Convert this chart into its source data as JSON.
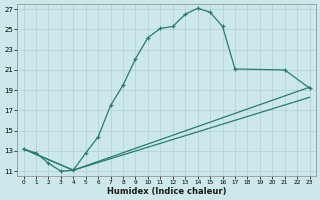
{
  "xlabel": "Humidex (Indice chaleur)",
  "bg_color": "#cce8ea",
  "grid_color": "#b0d0d4",
  "line_color": "#2a7a72",
  "xlim": [
    -0.5,
    23.5
  ],
  "ylim": [
    10.5,
    27.5
  ],
  "yticks": [
    11,
    13,
    15,
    17,
    19,
    21,
    23,
    25,
    27
  ],
  "xticks": [
    0,
    1,
    2,
    3,
    4,
    5,
    6,
    7,
    8,
    9,
    10,
    11,
    12,
    13,
    14,
    15,
    16,
    17,
    18,
    19,
    20,
    21,
    22,
    23
  ],
  "curve_x": [
    0,
    1,
    2,
    3,
    4,
    5,
    6,
    7,
    8,
    9,
    10,
    11,
    12,
    13,
    14,
    15,
    16,
    17,
    21,
    23
  ],
  "curve_y": [
    13.2,
    12.8,
    11.8,
    11.0,
    11.1,
    12.8,
    14.4,
    17.5,
    19.5,
    22.1,
    24.2,
    25.1,
    25.3,
    26.5,
    27.1,
    26.7,
    25.3,
    21.1,
    21.0,
    19.2
  ],
  "line2_x": [
    0,
    4,
    23
  ],
  "line2_y": [
    13.2,
    11.1,
    19.3
  ],
  "line3_x": [
    0,
    4,
    23
  ],
  "line3_y": [
    13.2,
    11.1,
    18.3
  ]
}
